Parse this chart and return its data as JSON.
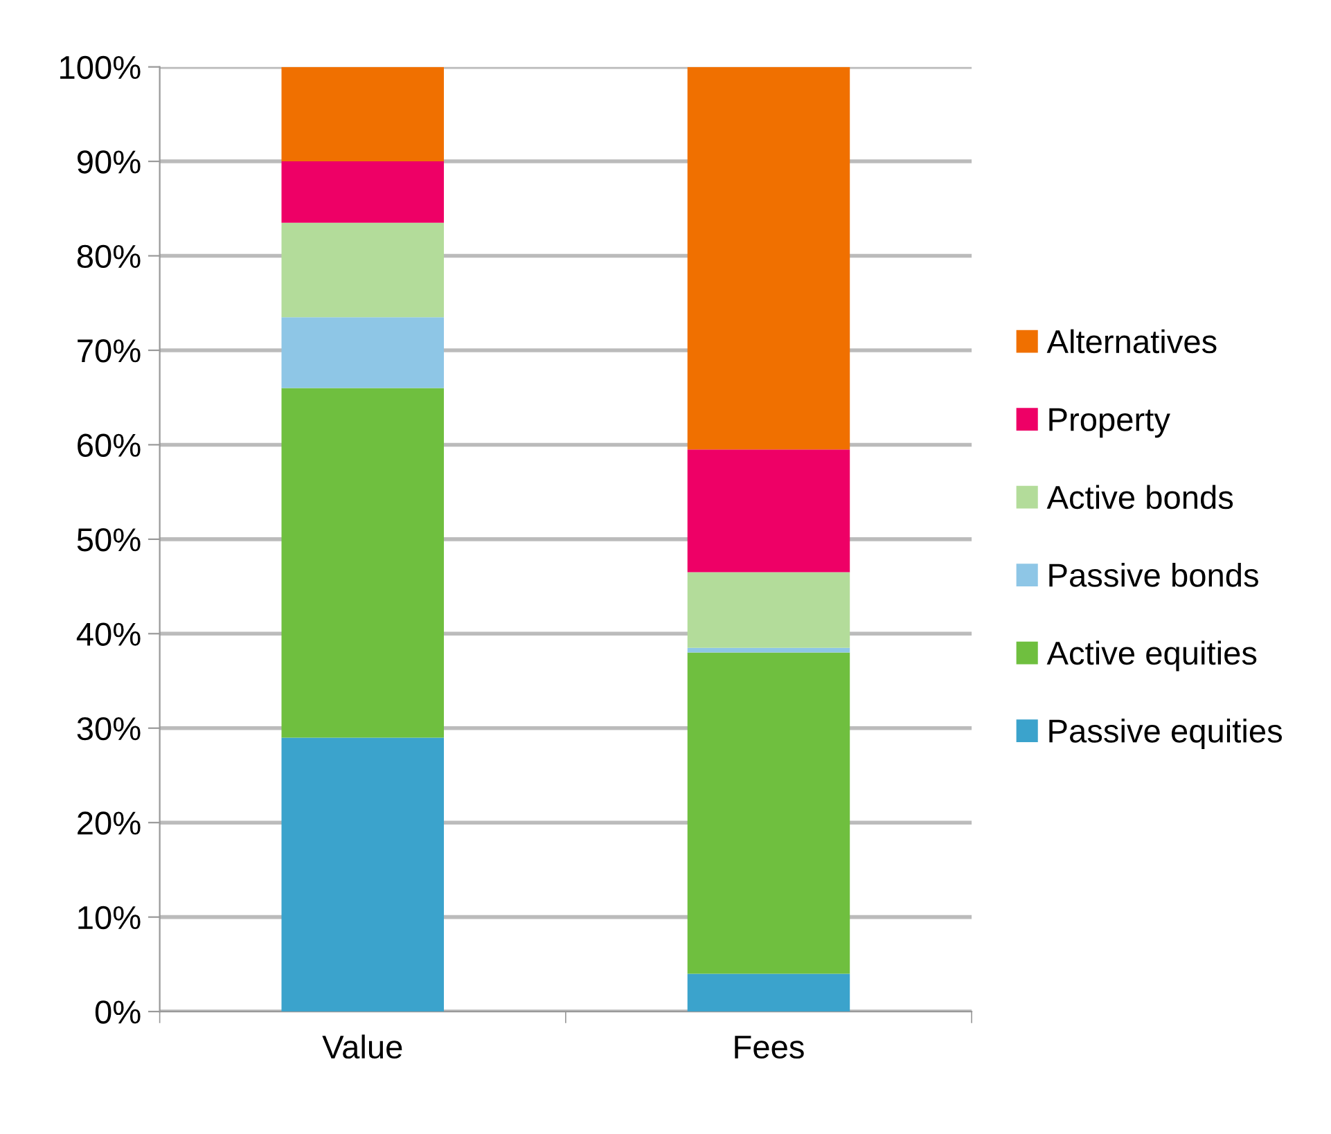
{
  "chart_data": {
    "type": "bar",
    "stacked": true,
    "categories": [
      "Value",
      "Fees"
    ],
    "series": [
      {
        "name": "Passive equities",
        "color": "#3ba3cc",
        "values": [
          29,
          4
        ]
      },
      {
        "name": "Active equities",
        "color": "#6fbf3f",
        "values": [
          37,
          34
        ]
      },
      {
        "name": "Passive bonds",
        "color": "#8ec6e6",
        "values": [
          7.5,
          0.5
        ]
      },
      {
        "name": "Active bonds",
        "color": "#b3dc9a",
        "values": [
          10,
          8
        ]
      },
      {
        "name": "Property",
        "color": "#ee0066",
        "values": [
          6.5,
          13
        ]
      },
      {
        "name": "Alternatives",
        "color": "#f07000",
        "values": [
          10,
          40.5
        ]
      }
    ],
    "ylim": [
      0,
      100
    ],
    "yticks": [
      {
        "value": 0,
        "label": "0%"
      },
      {
        "value": 10,
        "label": "10%"
      },
      {
        "value": 20,
        "label": "20%"
      },
      {
        "value": 30,
        "label": "30%"
      },
      {
        "value": 40,
        "label": "40%"
      },
      {
        "value": 50,
        "label": "50%"
      },
      {
        "value": 60,
        "label": "60%"
      },
      {
        "value": 70,
        "label": "70%"
      },
      {
        "value": 80,
        "label": "80%"
      },
      {
        "value": 90,
        "label": "90%"
      },
      {
        "value": 100,
        "label": "100%"
      }
    ],
    "grid": "y",
    "legend": "right"
  }
}
